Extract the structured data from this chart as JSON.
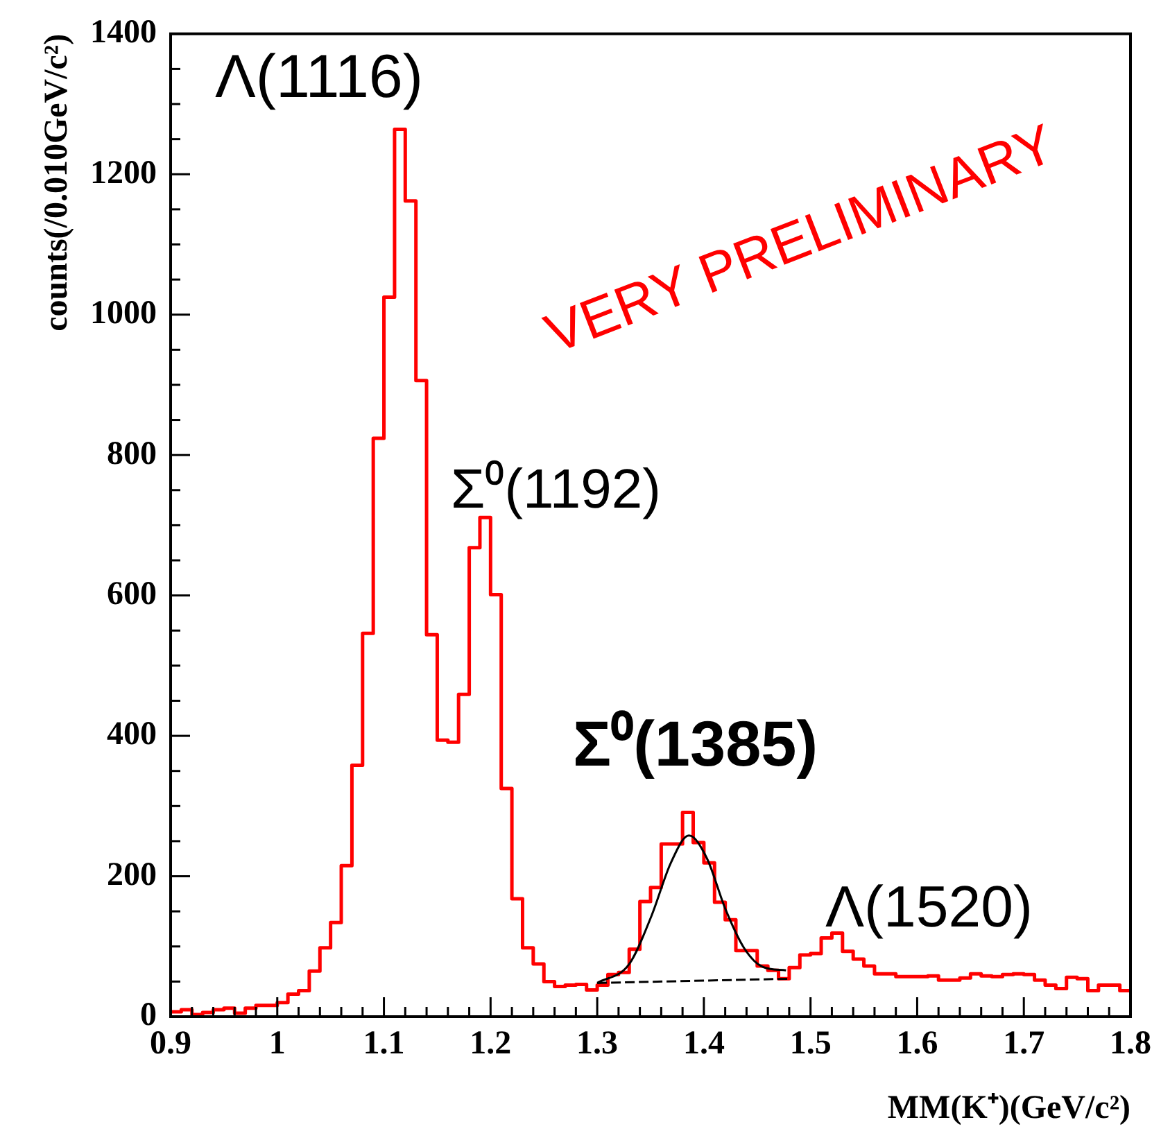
{
  "chart_data": {
    "type": "histogram",
    "xlabel": "MM(K⁺)(GeV/c²)",
    "ylabel": "counts(/0.010GeV/c²)",
    "annotations": [
      "Λ(1116)",
      "Σ⁰(1192)",
      "Σ⁰(1385)",
      "Λ(1520)",
      "VERY PRELIMINARY"
    ],
    "bins": [
      0.9,
      0.91,
      0.92,
      0.93,
      0.94,
      0.95,
      0.96,
      0.97,
      0.98,
      0.99,
      1.0,
      1.01,
      1.02,
      1.03,
      1.04,
      1.05,
      1.06,
      1.07,
      1.08,
      1.09,
      1.1,
      1.11,
      1.12,
      1.13,
      1.14,
      1.15,
      1.16,
      1.17,
      1.18,
      1.19,
      1.2,
      1.21,
      1.22,
      1.23,
      1.24,
      1.25,
      1.26,
      1.27,
      1.28,
      1.29,
      1.3,
      1.31,
      1.32,
      1.33,
      1.34,
      1.35,
      1.36,
      1.37,
      1.38,
      1.39,
      1.4,
      1.41,
      1.42,
      1.43,
      1.44,
      1.45,
      1.46,
      1.47,
      1.48,
      1.49,
      1.5,
      1.51,
      1.52,
      1.53,
      1.54,
      1.55,
      1.56,
      1.57,
      1.58,
      1.59,
      1.6,
      1.61,
      1.62,
      1.63,
      1.64,
      1.65,
      1.66,
      1.67,
      1.68,
      1.69,
      1.7,
      1.71,
      1.72,
      1.73,
      1.74,
      1.75,
      1.76,
      1.77,
      1.78,
      1.79,
      1.8
    ],
    "series": [
      {
        "type": "histogram",
        "color": "#ff0000",
        "values": [
          7,
          10,
          3,
          6,
          10,
          12,
          5,
          12,
          16,
          16,
          20,
          32,
          37,
          65,
          98,
          134,
          215,
          358,
          546,
          824,
          1025,
          1264,
          1162,
          906,
          544,
          394,
          391,
          459,
          668,
          711,
          601,
          325,
          168,
          98,
          75,
          50,
          43,
          45,
          46,
          38,
          45,
          60,
          63,
          96,
          164,
          184,
          246,
          246,
          291,
          248,
          219,
          163,
          138,
          94,
          94,
          72,
          66,
          54,
          70,
          88,
          90,
          112,
          119,
          93,
          82,
          72,
          61,
          61,
          57,
          57,
          57,
          58,
          52,
          52,
          55,
          61,
          58,
          57,
          60,
          61,
          60,
          52,
          45,
          40,
          56,
          54,
          37,
          45,
          45,
          37
        ]
      },
      {
        "type": "line",
        "color": "#000000",
        "x": [
          1.3,
          1.33,
          1.351,
          1.369,
          1.386,
          1.403,
          1.42,
          1.438,
          1.455,
          1.477
        ],
        "values": [
          48,
          75,
          144,
          219,
          258,
          225,
          154,
          97,
          71,
          66
        ]
      },
      {
        "type": "line",
        "color": "#000000",
        "line_style": "dashed",
        "x": [
          1.3,
          1.48
        ],
        "values": [
          48,
          54
        ]
      }
    ],
    "xlim": [
      0.9,
      1.8
    ],
    "xticks": [
      0.9,
      1,
      1.1,
      1.2,
      1.3,
      1.4,
      1.5,
      1.6,
      1.7,
      1.8
    ],
    "ylim": [
      0,
      1400
    ],
    "yticks": [
      0,
      200,
      400,
      600,
      800,
      1000,
      1200,
      1400
    ],
    "grid": false,
    "legend": false
  }
}
